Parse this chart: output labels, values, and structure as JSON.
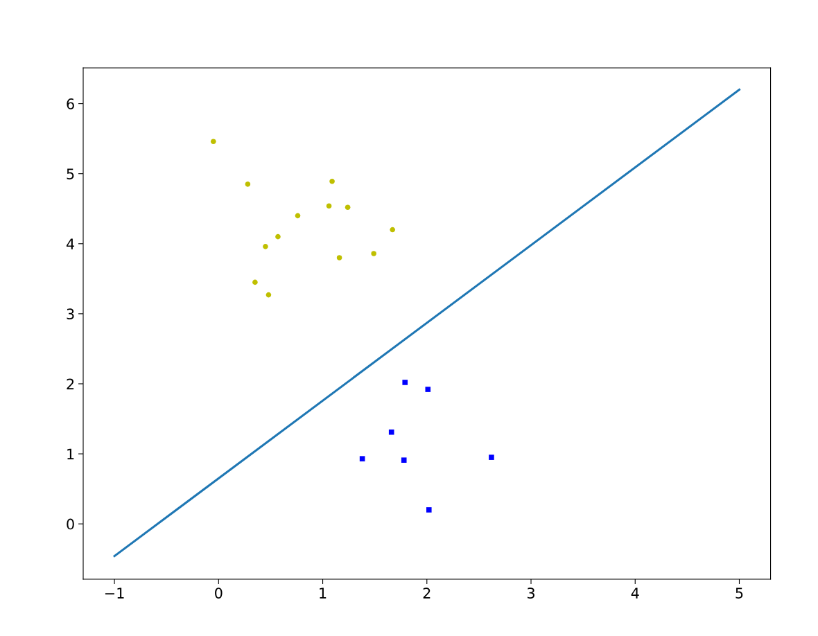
{
  "chart_data": {
    "type": "scatter",
    "xlim": [
      -1.3,
      5.3
    ],
    "ylim": [
      -0.79,
      6.51
    ],
    "xticks": [
      {
        "value": -1,
        "label": "−1"
      },
      0,
      1,
      2,
      3,
      4,
      5
    ],
    "yticks": [
      0,
      1,
      2,
      3,
      4,
      5,
      6
    ],
    "grid": false,
    "series": [
      {
        "color": "#bfbf00",
        "marker": "circle",
        "x": [
          -0.05,
          0.28,
          1.09,
          1.06,
          1.24,
          0.76,
          1.67,
          0.57,
          0.45,
          1.16,
          1.49,
          0.35,
          0.48
        ],
        "values": [
          5.46,
          4.85,
          4.89,
          4.54,
          4.52,
          4.4,
          4.2,
          4.1,
          3.96,
          3.8,
          3.86,
          3.45,
          3.27
        ]
      },
      {
        "color": "#0000ff",
        "marker": "square",
        "x": [
          1.79,
          2.01,
          1.66,
          1.38,
          1.78,
          2.62,
          2.02
        ],
        "values": [
          2.02,
          1.92,
          1.31,
          0.93,
          0.91,
          0.95,
          0.2
        ]
      },
      {
        "type": "line",
        "color": "#1f77b4",
        "marker": "none",
        "line_style": "solid",
        "x": [
          -1,
          5
        ],
        "values": [
          -0.46,
          6.2
        ]
      }
    ]
  }
}
